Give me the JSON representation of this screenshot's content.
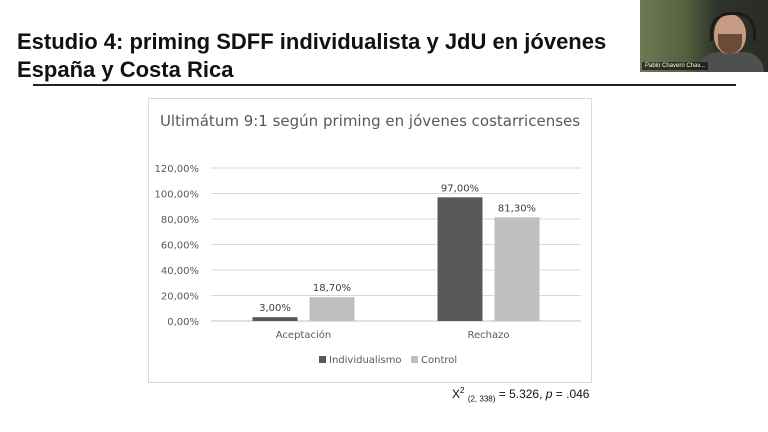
{
  "slide": {
    "title": "Estudio 4: priming SDFF individualista y JdU en jóvenes España y Costa Rica"
  },
  "video": {
    "participant_name": "Pablo Chaverri Chav..."
  },
  "stat": {
    "chi": "X",
    "sup": "2",
    "sub": "(2, 338)",
    "equals": " = 5.326, ",
    "p": "p",
    "pval": " = .046"
  },
  "chart_data": {
    "type": "bar",
    "title": "Ultimátum 9:1 según priming en jóvenes costarricenses",
    "categories": [
      "Aceptación",
      "Rechazo"
    ],
    "series": [
      {
        "name": "Individualismo",
        "color": "#595959",
        "values": [
          3.0,
          97.0
        ],
        "labels": [
          "3,00%",
          "97,00%"
        ]
      },
      {
        "name": "Control",
        "color": "#bfbfbf",
        "values": [
          18.7,
          81.3
        ],
        "labels": [
          "18,70%",
          "81,30%"
        ]
      }
    ],
    "ylim": [
      0,
      120
    ],
    "yticks": [
      0,
      20,
      40,
      60,
      80,
      100,
      120
    ],
    "ytick_labels": [
      "0,00%",
      "20,00%",
      "40,00%",
      "60,00%",
      "80,00%",
      "100,00%",
      "120,00%"
    ],
    "grid": true,
    "legend_position": "bottom"
  }
}
